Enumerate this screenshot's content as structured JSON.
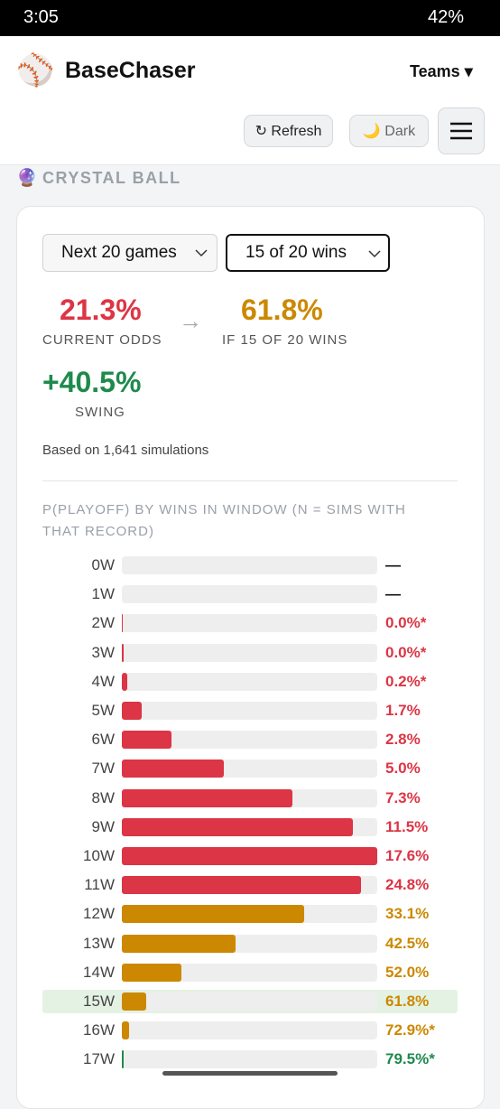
{
  "status_bar": {
    "time": "3:05",
    "battery": "42%"
  },
  "header": {
    "logo": "⚾",
    "title": "BaseChaser",
    "teams": "Teams ▾",
    "refresh": "↻ Refresh",
    "dark": "🌙 Dark"
  },
  "section": {
    "icon": "🔮",
    "title": "CRYSTAL BALL"
  },
  "controls": {
    "window": "Next 20 games",
    "target": "15 of 20 wins"
  },
  "stats": {
    "current_value": "21.3%",
    "current_label": "CURRENT ODDS",
    "arrow": "→",
    "if_value": "61.8%",
    "if_label": "IF 15 OF 20 WINS",
    "swing_value": "+40.5%",
    "swing_label": "SWING",
    "note": "Based on 1,641 simulations"
  },
  "chart": {
    "title": "P(PLAYOFF) BY WINS IN WINDOW (N = SIMS WITH THAT RECORD)",
    "rows": [
      {
        "label": "0W",
        "sims": 0,
        "odds": "—",
        "color": "#111111"
      },
      {
        "label": "1W",
        "sims": 0,
        "odds": "—",
        "color": "#111111"
      },
      {
        "label": "2W",
        "sims": 1,
        "odds": "0.0%*",
        "color": "#dc3545"
      },
      {
        "label": "3W",
        "sims": 2,
        "odds": "0.0%*",
        "color": "#dc3545"
      },
      {
        "label": "4W",
        "sims": 6,
        "odds": "0.2%*",
        "color": "#dc3545"
      },
      {
        "label": "5W",
        "sims": 22,
        "odds": "1.7%",
        "color": "#dc3545"
      },
      {
        "label": "6W",
        "sims": 56,
        "odds": "2.8%",
        "color": "#dc3545"
      },
      {
        "label": "7W",
        "sims": 114,
        "odds": "5.0%",
        "color": "#dc3545"
      },
      {
        "label": "8W",
        "sims": 191,
        "odds": "7.3%",
        "color": "#dc3545"
      },
      {
        "label": "9W",
        "sims": 259,
        "odds": "11.5%",
        "color": "#dc3545"
      },
      {
        "label": "10W",
        "sims": 286,
        "odds": "17.6%",
        "color": "#dc3545"
      },
      {
        "label": "11W",
        "sims": 268,
        "odds": "24.8%",
        "color": "#dc3545"
      },
      {
        "label": "12W",
        "sims": 204,
        "odds": "33.1%",
        "color": "#cc8800"
      },
      {
        "label": "13W",
        "sims": 127,
        "odds": "42.5%",
        "color": "#cc8800"
      },
      {
        "label": "14W",
        "sims": 67,
        "odds": "52.0%",
        "color": "#cc8800"
      },
      {
        "label": "15W",
        "sims": 27,
        "odds": "61.8%",
        "color": "#cc8800",
        "highlight": true
      },
      {
        "label": "16W",
        "sims": 8,
        "odds": "72.9%*",
        "color": "#cc8800"
      },
      {
        "label": "17W",
        "sims": 2,
        "odds": "79.5%*",
        "color": "#1e8a4c"
      }
    ]
  }
}
